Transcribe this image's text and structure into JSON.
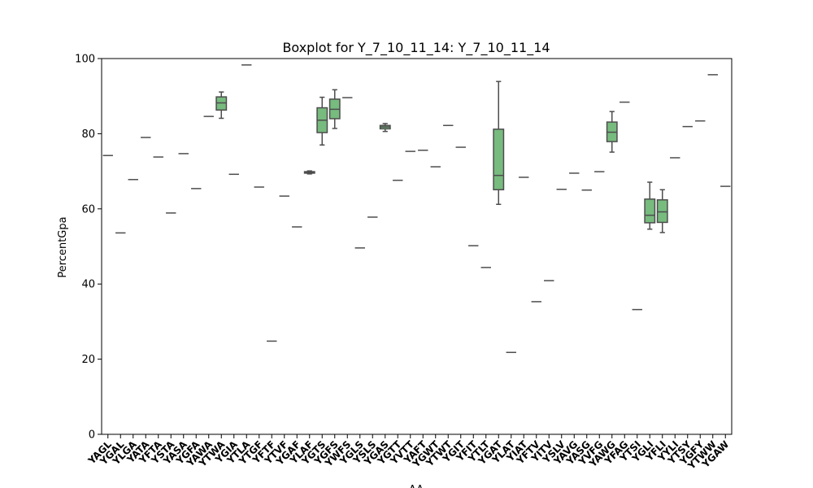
{
  "chart_data": {
    "type": "box",
    "title": "Boxplot for Y_7_10_11_14: Y_7_10_11_14",
    "xlabel": "AA",
    "ylabel": "PercentGpa",
    "ylim": [
      0,
      100
    ],
    "yticks": [
      0,
      20,
      40,
      60,
      80,
      100
    ],
    "box_color": "#77bb7e",
    "line_color": "#4d4d4d",
    "grid": false,
    "categories": [
      {
        "label": "YAGL",
        "stats": {
          "min": 74.2,
          "q1": 74.2,
          "median": 74.2,
          "q3": 74.2,
          "max": 74.2
        }
      },
      {
        "label": "YGAL",
        "stats": {
          "min": 53.6,
          "q1": 53.6,
          "median": 53.6,
          "q3": 53.6,
          "max": 53.6
        }
      },
      {
        "label": "YLGA",
        "stats": {
          "min": 67.8,
          "q1": 67.8,
          "median": 67.8,
          "q3": 67.8,
          "max": 67.8
        }
      },
      {
        "label": "YATA",
        "stats": {
          "min": 79.0,
          "q1": 79.0,
          "median": 79.0,
          "q3": 79.0,
          "max": 79.0
        }
      },
      {
        "label": "YFTA",
        "stats": {
          "min": 73.8,
          "q1": 73.8,
          "median": 73.8,
          "q3": 73.8,
          "max": 73.8
        }
      },
      {
        "label": "YSTA",
        "stats": {
          "min": 58.9,
          "q1": 58.9,
          "median": 58.9,
          "q3": 58.9,
          "max": 58.9
        }
      },
      {
        "label": "YASA",
        "stats": {
          "min": 74.7,
          "q1": 74.7,
          "median": 74.7,
          "q3": 74.7,
          "max": 74.7
        }
      },
      {
        "label": "YGFA",
        "stats": {
          "min": 65.4,
          "q1": 65.4,
          "median": 65.4,
          "q3": 65.4,
          "max": 65.4
        }
      },
      {
        "label": "YAWA",
        "stats": {
          "min": 84.6,
          "q1": 84.6,
          "median": 84.6,
          "q3": 84.6,
          "max": 84.6
        }
      },
      {
        "label": "YTWA",
        "stats": {
          "min": 84.1,
          "q1": 86.3,
          "median": 88.2,
          "q3": 89.8,
          "max": 91.1
        }
      },
      {
        "label": "YGIA",
        "stats": {
          "min": 69.2,
          "q1": 69.2,
          "median": 69.2,
          "q3": 69.2,
          "max": 69.2
        }
      },
      {
        "label": "YTLA",
        "stats": {
          "min": 98.3,
          "q1": 98.3,
          "median": 98.3,
          "q3": 98.3,
          "max": 98.3
        }
      },
      {
        "label": "YTGF",
        "stats": {
          "min": 65.8,
          "q1": 65.8,
          "median": 65.8,
          "q3": 65.8,
          "max": 65.8
        }
      },
      {
        "label": "YFTF",
        "stats": {
          "min": 24.8,
          "q1": 24.8,
          "median": 24.8,
          "q3": 24.8,
          "max": 24.8
        }
      },
      {
        "label": "YTVF",
        "stats": {
          "min": 63.4,
          "q1": 63.4,
          "median": 63.4,
          "q3": 63.4,
          "max": 63.4
        }
      },
      {
        "label": "YGAF",
        "stats": {
          "min": 55.2,
          "q1": 55.2,
          "median": 55.2,
          "q3": 55.2,
          "max": 55.2
        }
      },
      {
        "label": "YLAF",
        "stats": {
          "min": 69.3,
          "q1": 69.5,
          "median": 69.7,
          "q3": 69.9,
          "max": 70.1
        }
      },
      {
        "label": "YGTS",
        "stats": {
          "min": 77.0,
          "q1": 80.3,
          "median": 83.6,
          "q3": 86.9,
          "max": 89.7
        }
      },
      {
        "label": "YGFS",
        "stats": {
          "min": 81.4,
          "q1": 84.0,
          "median": 86.5,
          "q3": 89.2,
          "max": 91.7
        }
      },
      {
        "label": "YWFS",
        "stats": {
          "min": 89.6,
          "q1": 89.6,
          "median": 89.6,
          "q3": 89.6,
          "max": 89.6
        }
      },
      {
        "label": "YGLS",
        "stats": {
          "min": 49.6,
          "q1": 49.6,
          "median": 49.6,
          "q3": 49.6,
          "max": 49.6
        }
      },
      {
        "label": "YSLS",
        "stats": {
          "min": 57.8,
          "q1": 57.8,
          "median": 57.8,
          "q3": 57.8,
          "max": 57.8
        }
      },
      {
        "label": "YGAS",
        "stats": {
          "min": 80.6,
          "q1": 81.3,
          "median": 81.8,
          "q3": 82.2,
          "max": 82.7
        }
      },
      {
        "label": "YGTT",
        "stats": {
          "min": 67.6,
          "q1": 67.6,
          "median": 67.6,
          "q3": 67.6,
          "max": 67.6
        }
      },
      {
        "label": "YVTT",
        "stats": {
          "min": 75.3,
          "q1": 75.3,
          "median": 75.3,
          "q3": 75.3,
          "max": 75.3
        }
      },
      {
        "label": "YAFT",
        "stats": {
          "min": 75.6,
          "q1": 75.6,
          "median": 75.6,
          "q3": 75.6,
          "max": 75.6
        }
      },
      {
        "label": "YGWT",
        "stats": {
          "min": 71.2,
          "q1": 71.2,
          "median": 71.2,
          "q3": 71.2,
          "max": 71.2
        }
      },
      {
        "label": "YTWT",
        "stats": {
          "min": 82.2,
          "q1": 82.2,
          "median": 82.2,
          "q3": 82.2,
          "max": 82.2
        }
      },
      {
        "label": "YGIT",
        "stats": {
          "min": 76.4,
          "q1": 76.4,
          "median": 76.4,
          "q3": 76.4,
          "max": 76.4
        }
      },
      {
        "label": "YFIT",
        "stats": {
          "min": 50.2,
          "q1": 50.2,
          "median": 50.2,
          "q3": 50.2,
          "max": 50.2
        }
      },
      {
        "label": "YTLT",
        "stats": {
          "min": 44.4,
          "q1": 44.4,
          "median": 44.4,
          "q3": 44.4,
          "max": 44.4
        }
      },
      {
        "label": "YGAT",
        "stats": {
          "min": 61.2,
          "q1": 65.1,
          "median": 68.9,
          "q3": 81.2,
          "max": 93.9
        }
      },
      {
        "label": "YLAT",
        "stats": {
          "min": 21.8,
          "q1": 21.8,
          "median": 21.8,
          "q3": 21.8,
          "max": 21.8
        }
      },
      {
        "label": "YIAT",
        "stats": {
          "min": 68.4,
          "q1": 68.4,
          "median": 68.4,
          "q3": 68.4,
          "max": 68.4
        }
      },
      {
        "label": "YFTV",
        "stats": {
          "min": 35.3,
          "q1": 35.3,
          "median": 35.3,
          "q3": 35.3,
          "max": 35.3
        }
      },
      {
        "label": "YITV",
        "stats": {
          "min": 40.9,
          "q1": 40.9,
          "median": 40.9,
          "q3": 40.9,
          "max": 40.9
        }
      },
      {
        "label": "YSLV",
        "stats": {
          "min": 65.2,
          "q1": 65.2,
          "median": 65.2,
          "q3": 65.2,
          "max": 65.2
        }
      },
      {
        "label": "YAVG",
        "stats": {
          "min": 69.5,
          "q1": 69.5,
          "median": 69.5,
          "q3": 69.5,
          "max": 69.5
        }
      },
      {
        "label": "YASG",
        "stats": {
          "min": 65.0,
          "q1": 65.0,
          "median": 65.0,
          "q3": 65.0,
          "max": 65.0
        }
      },
      {
        "label": "YVFG",
        "stats": {
          "min": 69.9,
          "q1": 69.9,
          "median": 69.9,
          "q3": 69.9,
          "max": 69.9
        }
      },
      {
        "label": "YAWG",
        "stats": {
          "min": 75.1,
          "q1": 77.9,
          "median": 80.4,
          "q3": 83.1,
          "max": 85.9
        }
      },
      {
        "label": "YFAG",
        "stats": {
          "min": 88.4,
          "q1": 88.4,
          "median": 88.4,
          "q3": 88.4,
          "max": 88.4
        }
      },
      {
        "label": "YTSI",
        "stats": {
          "min": 33.2,
          "q1": 33.2,
          "median": 33.2,
          "q3": 33.2,
          "max": 33.2
        }
      },
      {
        "label": "YGLI",
        "stats": {
          "min": 54.6,
          "q1": 56.3,
          "median": 58.3,
          "q3": 62.6,
          "max": 67.1
        }
      },
      {
        "label": "YFLI",
        "stats": {
          "min": 53.7,
          "q1": 56.4,
          "median": 59.2,
          "q3": 62.4,
          "max": 65.1
        }
      },
      {
        "label": "YYLI",
        "stats": {
          "min": 73.6,
          "q1": 73.6,
          "median": 73.6,
          "q3": 73.6,
          "max": 73.6
        }
      },
      {
        "label": "YTSY",
        "stats": {
          "min": 81.9,
          "q1": 81.9,
          "median": 81.9,
          "q3": 81.9,
          "max": 81.9
        }
      },
      {
        "label": "YGFY",
        "stats": {
          "min": 83.4,
          "q1": 83.4,
          "median": 83.4,
          "q3": 83.4,
          "max": 83.4
        }
      },
      {
        "label": "YTWW",
        "stats": {
          "min": 95.7,
          "q1": 95.7,
          "median": 95.7,
          "q3": 95.7,
          "max": 95.7
        }
      },
      {
        "label": "YGAW",
        "stats": {
          "min": 66.0,
          "q1": 66.0,
          "median": 66.0,
          "q3": 66.0,
          "max": 66.0
        }
      }
    ]
  }
}
